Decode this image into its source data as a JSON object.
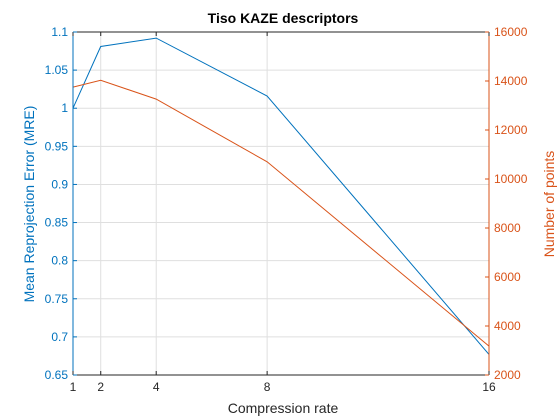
{
  "chart_data": {
    "type": "line",
    "title": "Tiso KAZE descriptors",
    "xlabel": "Compression rate",
    "ylabel_left": "Mean Reprojection Error (MRE)",
    "ylabel_right": "Number of points",
    "xlim": [
      1,
      16
    ],
    "ylim_left": [
      0.65,
      1.1
    ],
    "ylim_right": [
      2000,
      16000
    ],
    "x_ticks": [
      1,
      2,
      4,
      8,
      16
    ],
    "y_ticks_left": [
      0.65,
      0.7,
      0.75,
      0.8,
      0.85,
      0.9,
      0.95,
      1,
      1.05,
      1.1
    ],
    "y_ticks_right": [
      2000,
      4000,
      6000,
      8000,
      10000,
      12000,
      14000,
      16000
    ],
    "x_tick_labels": [
      "1",
      "2",
      "4",
      "8",
      "16"
    ],
    "y_tick_labels_left": [
      "0.65",
      "0.7",
      "0.75",
      "0.8",
      "0.85",
      "0.9",
      "0.95",
      "1",
      "1.05",
      "1.1"
    ],
    "y_tick_labels_right": [
      "2000",
      "4000",
      "6000",
      "8000",
      "10000",
      "12000",
      "14000",
      "16000"
    ],
    "grid": true,
    "x": [
      1,
      2,
      4,
      8,
      16
    ],
    "series": [
      {
        "axis": "left",
        "values": [
          1.0,
          1.081,
          1.092,
          1.016,
          0.677
        ],
        "color": "#0072BD"
      },
      {
        "axis": "right",
        "values": [
          13750,
          14030,
          13260,
          10700,
          3180
        ],
        "color": "#D95319"
      }
    ],
    "colors": {
      "left_axis": "#0072BD",
      "right_axis": "#D95319",
      "grid": "#dfdfdf",
      "axis_black": "#262626"
    }
  }
}
